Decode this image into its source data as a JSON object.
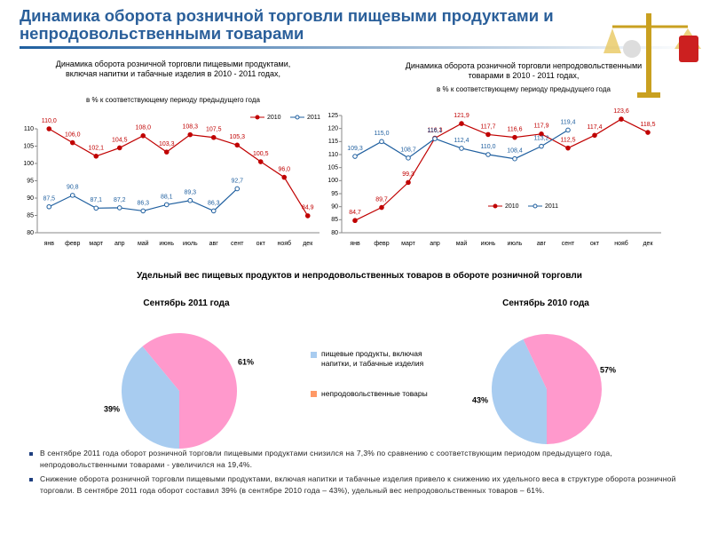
{
  "header": {
    "title": "Динамика оборота розничной торговли пищевыми продуктами и непродовольственными товарами"
  },
  "chart_data": [
    {
      "type": "line",
      "title": "Динамика оборота розничной торговли пищевыми продуктами, включая напитки и табачные изделия  в 2010 - 2011 годах,",
      "subtitle": "в % к соответствующему периоду предыдущего года",
      "categories": [
        "янв",
        "февр",
        "март",
        "апр",
        "май",
        "июнь",
        "июль",
        "авг",
        "сент",
        "окт",
        "нояб",
        "дек"
      ],
      "series": [
        {
          "name": "2010",
          "color": "#c00000",
          "values": [
            110.0,
            106.0,
            102.1,
            104.5,
            108.0,
            103.3,
            108.3,
            107.5,
            105.3,
            100.5,
            96.0,
            84.9
          ],
          "value_labels": [
            "110,0",
            "106,0",
            "102,1",
            "104,5",
            "108,0",
            "103,3",
            "108,3",
            "107,5",
            "105,3",
            "100,5",
            "96,0",
            "84,9"
          ]
        },
        {
          "name": "2011",
          "color": "#1f5f9f",
          "values": [
            87.5,
            90.8,
            87.1,
            87.2,
            86.3,
            88.1,
            89.3,
            86.3,
            92.7,
            null,
            null,
            null
          ],
          "value_labels": [
            "87,5",
            "90,8",
            "87,1",
            "87,2",
            "86,3",
            "88,1",
            "89,3",
            "86,3",
            "92,7",
            null,
            null,
            null
          ]
        }
      ],
      "ylim": [
        80,
        110
      ],
      "yticks": [
        80,
        85,
        90,
        95,
        100,
        105,
        110
      ],
      "grid": false,
      "legend": "top-right"
    },
    {
      "type": "line",
      "title": "Динамика оборота розничной торговли непродовольственными  товарами в 2010 - 2011 годах,",
      "subtitle": "в % к соответствующему периоду предыдущего года",
      "categories": [
        "янв",
        "февр",
        "март",
        "апр",
        "май",
        "июнь",
        "июль",
        "авг",
        "сент",
        "окт",
        "нояб",
        "дек"
      ],
      "series": [
        {
          "name": "2010",
          "color": "#c00000",
          "values": [
            84.7,
            89.7,
            99.3,
            116.3,
            121.9,
            117.7,
            116.6,
            117.9,
            112.5,
            117.4,
            123.6,
            118.5
          ],
          "value_labels": [
            "84,7",
            "89,7",
            "99,3",
            "116,3",
            "121,9",
            "117,7",
            "116,6",
            "117,9",
            "112,5",
            "117,4",
            "123,6",
            "118,5"
          ]
        },
        {
          "name": "2011",
          "color": "#1f5f9f",
          "values": [
            109.3,
            115.0,
            108.7,
            116.1,
            112.4,
            110.0,
            108.4,
            113.2,
            119.4,
            null,
            null,
            null
          ],
          "value_labels": [
            "109,3",
            "115,0",
            "108,7",
            "116,1",
            "112,4",
            "110,0",
            "108,4",
            "113,2",
            "119,4",
            null,
            null,
            null
          ]
        }
      ],
      "ylim": [
        80,
        125
      ],
      "yticks": [
        80,
        85,
        90,
        95,
        100,
        105,
        110,
        115,
        120,
        125
      ],
      "grid": false,
      "legend": "bottom"
    },
    {
      "type": "pie",
      "title": "Сентябрь 2011 года",
      "categories": [
        "пищевые продукты, включая напитки, и табачные изделия",
        "непродовольственные товары"
      ],
      "values": [
        39,
        61
      ],
      "value_labels": [
        "39%",
        "61%"
      ],
      "colors": [
        "#a8ccf0",
        "#ff99cc"
      ]
    },
    {
      "type": "pie",
      "title": "Сентябрь 2010 года",
      "values": [
        43,
        57
      ],
      "value_labels": [
        "43%",
        "57%"
      ],
      "colors": [
        "#a8ccf0",
        "#ff99cc"
      ]
    }
  ],
  "section_title": "Удельный вес пищевых продуктов и непродовольственных товаров в обороте розничной торговли",
  "bullets": [
    "В сентябре 2011 года оборот розничной торговли пищевыми продуктами снизился на 7,3% по сравнению с соответствующим периодом предыдущего года, непродовольственными товарами - увеличился на 19,4%.",
    "Снижение оборота розничной торговли пищевыми продуктами, включая напитки и табачные изделия привело к снижению их удельного веса в структуре оборота розничной торговли. В сентябре 2011 года оборот составил 39% (в сентябре 2010 года – 43%), удельный вес непродовольственных товаров – 61%."
  ]
}
